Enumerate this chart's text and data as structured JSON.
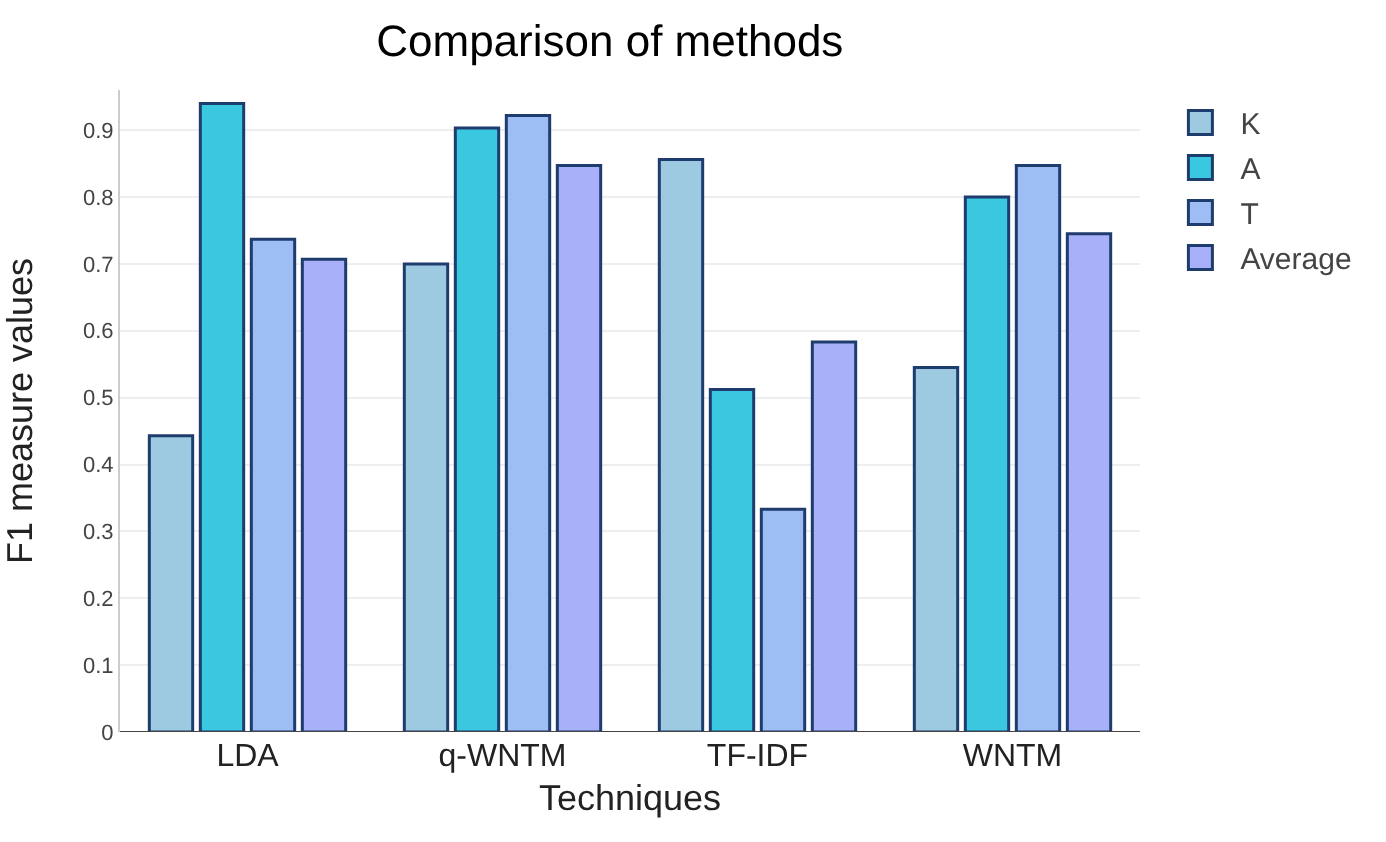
{
  "chart_data": {
    "type": "bar",
    "title": "Comparison of methods",
    "xlabel": "Techniques",
    "ylabel": "F1 measure values",
    "categories": [
      "LDA",
      "q-WNTM",
      "TF-IDF",
      "WNTM"
    ],
    "series": [
      {
        "name": "K",
        "color": "#9ecae1",
        "values": [
          0.443,
          0.7,
          0.856,
          0.545
        ]
      },
      {
        "name": "A",
        "color": "#3ac7e0",
        "values": [
          0.94,
          0.903,
          0.512,
          0.8
        ]
      },
      {
        "name": "T",
        "color": "#9dbdf5",
        "values": [
          0.737,
          0.922,
          0.333,
          0.847
        ]
      },
      {
        "name": "Average",
        "color": "#a8b0fa",
        "values": [
          0.707,
          0.847,
          0.583,
          0.745
        ]
      }
    ],
    "ylim": [
      0,
      0.96
    ],
    "yticks": [
      0,
      0.1,
      0.2,
      0.3,
      0.4,
      0.5,
      0.6,
      0.7,
      0.8,
      0.9
    ],
    "grid": "y",
    "legend": "top right"
  }
}
